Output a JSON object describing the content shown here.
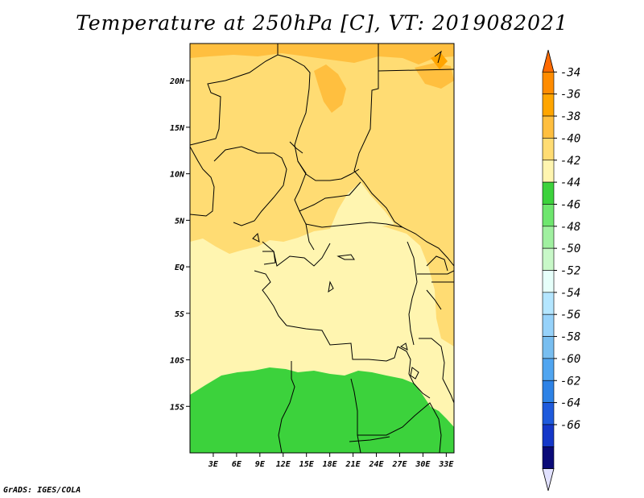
{
  "title": "Temperature at 250hPa [C], VT: 2019082021",
  "credit": "GrADS: IGES/COLA",
  "map": {
    "lon_range": [
      0,
      34
    ],
    "lat_range": [
      -20,
      24
    ],
    "lon_ticks": [
      {
        "value": 3,
        "label": "3E"
      },
      {
        "value": 6,
        "label": "6E"
      },
      {
        "value": 9,
        "label": "9E"
      },
      {
        "value": 12,
        "label": "12E"
      },
      {
        "value": 15,
        "label": "15E"
      },
      {
        "value": 18,
        "label": "18E"
      },
      {
        "value": 21,
        "label": "21E"
      },
      {
        "value": 24,
        "label": "24E"
      },
      {
        "value": 27,
        "label": "27E"
      },
      {
        "value": 30,
        "label": "30E"
      },
      {
        "value": 33,
        "label": "33E"
      }
    ],
    "lat_ticks": [
      {
        "value": 20,
        "label": "20N"
      },
      {
        "value": 15,
        "label": "15N"
      },
      {
        "value": 10,
        "label": "10N"
      },
      {
        "value": 5,
        "label": "5N"
      },
      {
        "value": 0,
        "label": "EQ"
      },
      {
        "value": -5,
        "label": "5S"
      },
      {
        "value": -10,
        "label": "10S"
      },
      {
        "value": -15,
        "label": "15S"
      }
    ]
  },
  "colorbar": {
    "labels": [
      "-34",
      "-36",
      "-38",
      "-40",
      "-42",
      "-44",
      "-46",
      "-48",
      "-50",
      "-52",
      "-54",
      "-56",
      "-58",
      "-60",
      "-62",
      "-64",
      "-66"
    ],
    "colors": [
      "#ff6a00",
      "#ff8c00",
      "#ffa500",
      "#ffbf3f",
      "#ffdc73",
      "#fff5b0",
      "#3cd23c",
      "#6ee66e",
      "#a0f0a0",
      "#c8f8c8",
      "#e6fffa",
      "#b4e6ff",
      "#96d2fa",
      "#78bef0",
      "#50a5f0",
      "#2d82e6",
      "#1e5adc",
      "#1437c8",
      "#0a0a78",
      "#e1e1ff"
    ]
  }
}
